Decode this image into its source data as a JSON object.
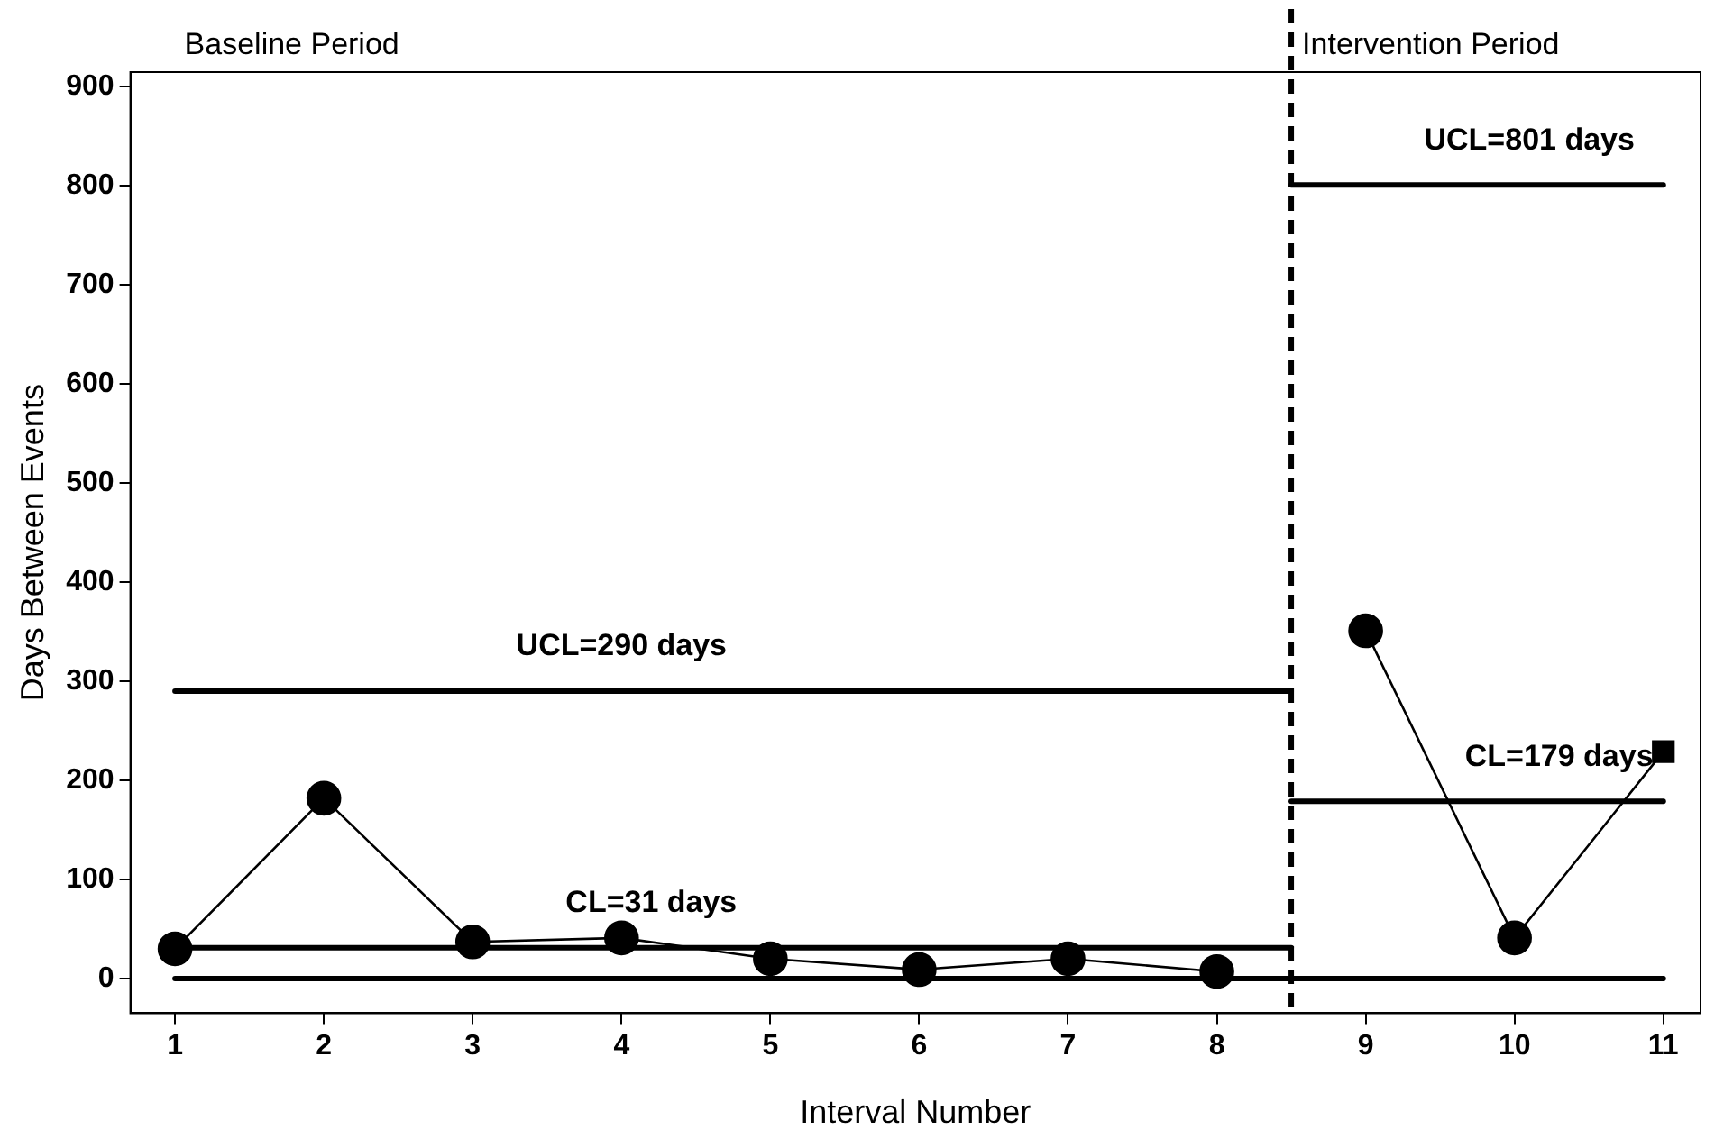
{
  "chart_data": {
    "type": "line",
    "xlabel": "Interval Number",
    "ylabel": "Days Between Events",
    "xlim": [
      0.7,
      11.25
    ],
    "xticks": [
      1,
      2,
      3,
      4,
      5,
      6,
      7,
      8,
      9,
      10,
      11
    ],
    "ylim": [
      -35,
      915
    ],
    "yticks": [
      0,
      100,
      200,
      300,
      400,
      500,
      600,
      700,
      800,
      900
    ],
    "grid": false,
    "legend": false,
    "series": [
      {
        "color": "#000000",
        "marker": "circle",
        "x": [
          1,
          2,
          3,
          4,
          5,
          6,
          7,
          8
        ],
        "values": [
          30,
          182,
          37,
          41,
          20,
          9,
          20,
          7
        ]
      },
      {
        "color": "#000000",
        "marker": [
          "circle",
          "circle",
          "square"
        ],
        "x": [
          9,
          10,
          11
        ],
        "values": [
          351,
          41,
          229
        ]
      },
      {
        "color": "#000000",
        "marker": "none",
        "x": [
          1,
          8.5
        ],
        "values": [
          290,
          290
        ]
      },
      {
        "color": "#000000",
        "marker": "none",
        "x": [
          1,
          8.5
        ],
        "values": [
          31,
          31
        ]
      },
      {
        "color": "#000000",
        "marker": "none",
        "x": [
          1,
          11
        ],
        "values": [
          0,
          0
        ]
      },
      {
        "color": "#000000",
        "marker": "none",
        "x": [
          8.5,
          11
        ],
        "values": [
          801,
          801
        ]
      },
      {
        "color": "#000000",
        "marker": "none",
        "x": [
          8.5,
          11
        ],
        "values": [
          179,
          179
        ]
      }
    ],
    "ref_lines": [
      {
        "axis": "x",
        "value": 8.5,
        "line_style": "dashed",
        "color": "#000000"
      }
    ],
    "annotations": [
      "Baseline Period",
      "Intervention Period",
      {
        "text": "UCL=290 days",
        "x": 4,
        "y": 290
      },
      {
        "text": "CL=31 days",
        "x": 4.2,
        "y": 31
      },
      {
        "text": "UCL=801 days",
        "x": 10.1,
        "y": 801
      },
      {
        "text": "CL=179 days",
        "x": 10.3,
        "y": 179
      }
    ]
  }
}
